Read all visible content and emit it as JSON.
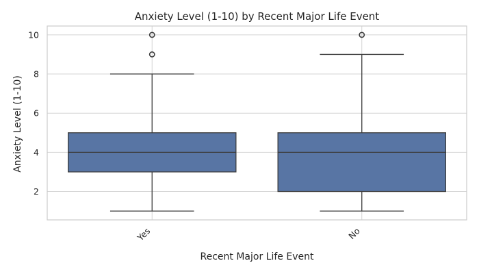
{
  "chart_data": {
    "type": "box",
    "title": "Anxiety Level (1-10) by Recent Major Life Event",
    "xlabel": "Recent Major Life Event",
    "ylabel": "Anxiety Level (1-10)",
    "ylim": [
      0.55,
      10.45
    ],
    "yticks": [
      2,
      4,
      6,
      8,
      10
    ],
    "grid": true,
    "categories": [
      "Yes",
      "No"
    ],
    "boxes": [
      {
        "category": "Yes",
        "whisker_low": 1,
        "q1": 3,
        "median": 4,
        "q3": 5,
        "whisker_high": 8,
        "outliers": [
          9,
          10
        ]
      },
      {
        "category": "No",
        "whisker_low": 1,
        "q1": 2,
        "median": 4,
        "q3": 5,
        "whisker_high": 9,
        "outliers": [
          10
        ]
      }
    ],
    "colors": {
      "box_fill": "#5875a4",
      "line": "#3d3d3d",
      "grid": "#d4d4d4",
      "frame": "#cccccc"
    }
  }
}
